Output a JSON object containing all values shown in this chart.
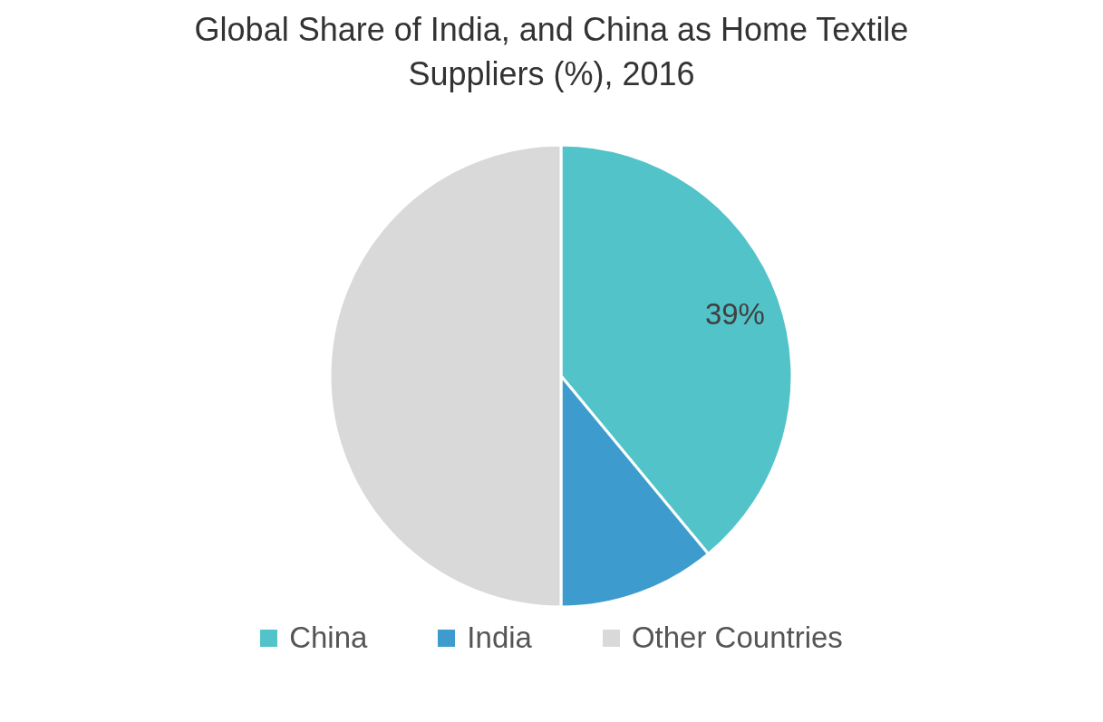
{
  "chart_data": {
    "type": "pie",
    "title": "Global Share of India, and China as Home Textile Suppliers (%), 2016",
    "categories": [
      "China",
      "India",
      "Other Countries"
    ],
    "values": [
      39,
      11,
      50
    ],
    "colors": [
      "#52c3c9",
      "#3d9ccd",
      "#d9d9d9"
    ],
    "value_labels": [
      "39%",
      null,
      null
    ],
    "legend": "bottom"
  }
}
